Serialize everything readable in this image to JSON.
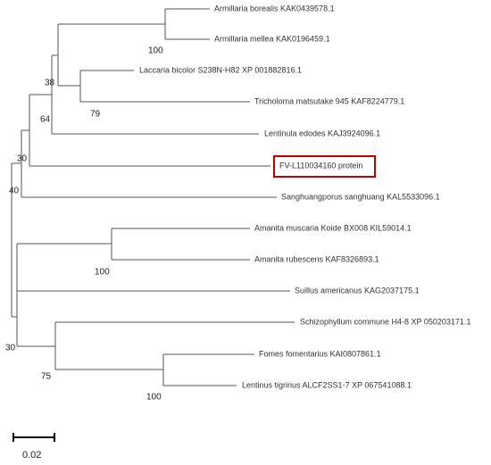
{
  "leaves": [
    "Armillaria borealis KAK0439578.1",
    "Armillaria mellea KAK0196459.1",
    "Laccaria bicolor S238N-H82 XP 001882816.1",
    "Tricholoma matsutake 945 KAF8224779.1",
    "Lentinula edodes KAJ3924096.1",
    "FV-L110034160 protein",
    "Sanghuangporus sanghuang KAL5533096.1",
    "Amanita muscaria Koide BX008 KIL59014.1",
    "Amanita rubescens KAF8326893.1",
    "Suillus americanus KAG2037175.1",
    "Schizophyllum commune H4-8 XP 050203171.1",
    "Fomes fomentarius KAI0807861.1",
    "Lentinus tigrinus ALCF2SS1-7 XP 067541088.1"
  ],
  "bootstrap": [
    100,
    38,
    79,
    64,
    30,
    40,
    100,
    30,
    75,
    100
  ],
  "scale_bar": "0.02"
}
